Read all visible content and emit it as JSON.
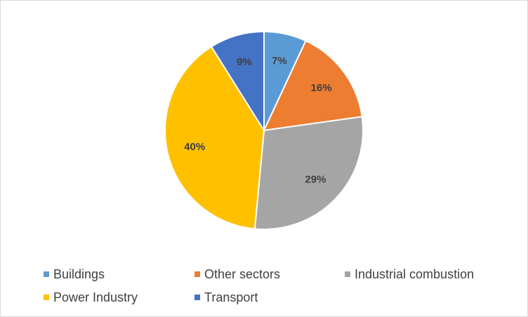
{
  "chart_data": {
    "type": "pie",
    "title": "",
    "categories": [
      "Buildings",
      "Other sectors",
      "Industrial combustion",
      "Power Industry",
      "Transport"
    ],
    "values": [
      7,
      16,
      29,
      40,
      9
    ],
    "labels": [
      "7%",
      "16%",
      "29%",
      "40%",
      "9%"
    ],
    "colors": [
      "#5b9bd5",
      "#ed7d31",
      "#a5a5a5",
      "#ffc000",
      "#4472c4"
    ],
    "legend_position": "bottom",
    "start_angle": "top",
    "direction": "clockwise"
  },
  "legend": {
    "items": [
      {
        "label": "Buildings",
        "color": "#5b9bd5"
      },
      {
        "label": "Other sectors",
        "color": "#ed7d31"
      },
      {
        "label": "Industrial combustion",
        "color": "#a5a5a5"
      },
      {
        "label": "Power Industry",
        "color": "#ffc000"
      },
      {
        "label": "Transport",
        "color": "#4472c4"
      }
    ]
  }
}
